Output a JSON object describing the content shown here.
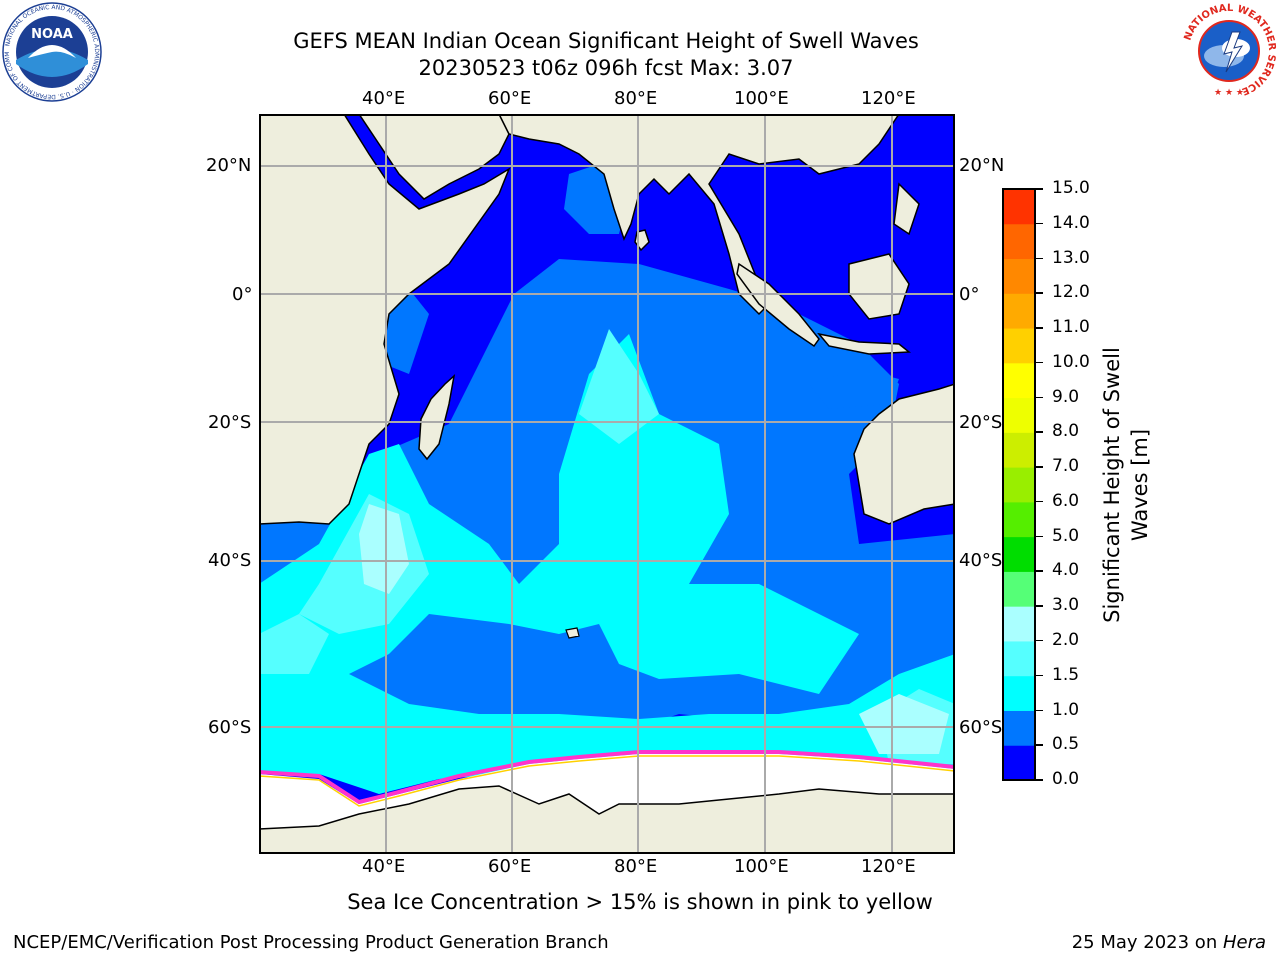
{
  "title": {
    "line1": "GEFS MEAN Indian Ocean Significant Height of Swell Waves",
    "line2": "20230523 t06z 096h fcst   Max: 3.07"
  },
  "map": {
    "lon_labels": [
      "40°E",
      "60°E",
      "80°E",
      "100°E",
      "120°E"
    ],
    "lat_labels": [
      "20°N",
      "0°",
      "20°S",
      "40°S",
      "60°S"
    ],
    "lon_range": [
      20,
      130
    ],
    "lat_range": [
      -72,
      28
    ],
    "colors": {
      "land": "#EEEEDD",
      "sea_ice": "#FFFFFF",
      "ice_edge": "#FF33CC",
      "grid": "#AAAAAA"
    }
  },
  "colorbar": {
    "label": "Significant Height of Swell Waves [m]",
    "label_line1": "Significant Height of Swell",
    "label_line2": "Waves [m]",
    "ticks": [
      "15.0",
      "14.0",
      "13.0",
      "12.0",
      "11.0",
      "10.0",
      "9.0",
      "8.0",
      "7.0",
      "6.0",
      "5.0",
      "4.0",
      "3.0",
      "2.0",
      "1.5",
      "1.0",
      "0.5",
      "0.0"
    ],
    "colors_bottom_to_top": [
      "#0000FF",
      "#0077FF",
      "#00FFFF",
      "#55FFFF",
      "#AAFFFF",
      "#55FF77",
      "#00DD00",
      "#55EE00",
      "#99EE00",
      "#CCEE00",
      "#EEFF00",
      "#FFFF00",
      "#FFD000",
      "#FFAA00",
      "#FF8800",
      "#FF6600",
      "#FF3300"
    ]
  },
  "caption": "Sea Ice Concentration > 15% is shown in pink to yellow",
  "footer": {
    "left": "NCEP/EMC/Verification Post Processing Product Generation Branch",
    "right_prefix": "25 May 2023 on ",
    "right_host": "Hera"
  },
  "logos": {
    "noaa": "NOAA",
    "noaa_ring": "NATIONAL OCEANIC AND ATMOSPHERIC ADMINISTRATION · U.S. DEPARTMENT OF COMMERCE",
    "nws_ring": "NATIONAL WEATHER SERVICE"
  }
}
